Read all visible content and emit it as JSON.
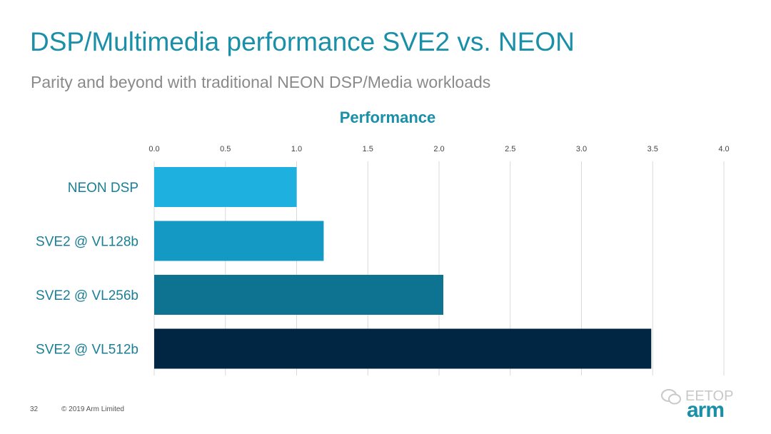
{
  "slide": {
    "title": "DSP/Multimedia performance SVE2 vs. NEON",
    "subtitle": "Parity and beyond with traditional NEON DSP/Media workloads",
    "page_number": "32",
    "copyright": "© 2019 Arm Limited",
    "logo_text": "arm",
    "watermark_text": "EETOP"
  },
  "chart_data": {
    "type": "bar",
    "orientation": "horizontal",
    "title": "Performance",
    "xlabel": "",
    "ylabel": "",
    "xlim": [
      0,
      4.0
    ],
    "ticks": [
      "0.0",
      "0.5",
      "1.0",
      "1.5",
      "2.0",
      "2.5",
      "3.0",
      "3.5",
      "4.0"
    ],
    "tick_values": [
      0,
      0.5,
      1.0,
      1.5,
      2.0,
      2.5,
      3.0,
      3.5,
      4.0
    ],
    "axis_position": "top",
    "grid": true,
    "categories": [
      "NEON DSP",
      "SVE2 @ VL128b",
      "SVE2 @ VL256b",
      "SVE2 @ VL512b"
    ],
    "values": [
      1.0,
      1.19,
      2.03,
      3.49
    ],
    "colors": [
      "#1eb1e0",
      "#1499c4",
      "#0e7391",
      "#002643"
    ],
    "title_color": "#1a8fa8",
    "label_color": "#1a7f96",
    "grid_color": "#d9d9d9"
  }
}
